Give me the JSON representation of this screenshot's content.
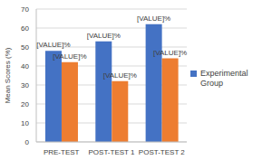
{
  "chart_data": {
    "type": "bar",
    "y_label": "Mean Scores (%)",
    "categories": [
      "PRE-TEST",
      "POST-TEST 1",
      "POST-TEST 2"
    ],
    "series": [
      {
        "name": "Experimental Group",
        "color": "#4472c4",
        "values": [
          48,
          53,
          62
        ],
        "value_labels": [
          "[VALUE]%",
          "[VALUE]%",
          "[VALUE]%"
        ]
      },
      {
        "color": "#ed7d31",
        "values": [
          42,
          32,
          44
        ],
        "value_labels": [
          "[VALUE]%",
          "[VALUE]%",
          "[VALUE]%"
        ]
      }
    ],
    "ylim": [
      0,
      70
    ],
    "yticks": [
      0,
      10,
      20,
      30,
      40,
      50,
      60,
      70
    ],
    "grid": true,
    "legend": "right",
    "data_labels": true
  }
}
